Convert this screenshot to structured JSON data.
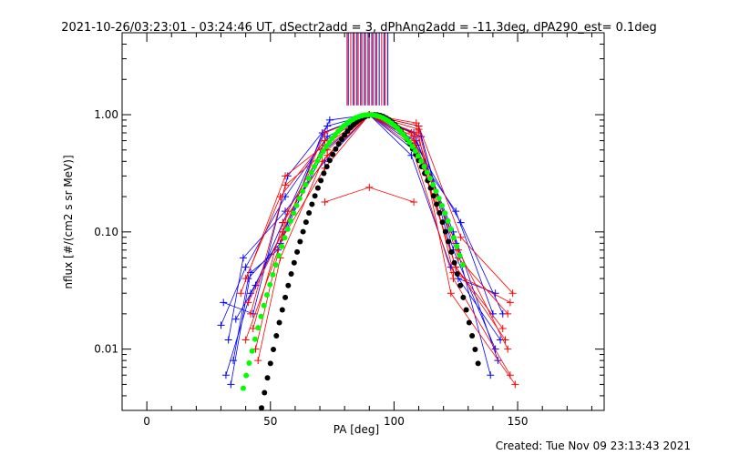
{
  "chart_data": {
    "type": "scatter",
    "title": "2021-10-26/03:23:01 - 03:24:46 UT, dSectr2add = 3, dPhAng2add = -11.3deg, dPA290_est=  0.1deg",
    "xlabel": "PA [deg]",
    "ylabel": "nflux [#/(cm2 s sr MeV)]",
    "xlim": [
      -10,
      185
    ],
    "ylim": [
      0.003,
      5.0
    ],
    "yscale": "log",
    "xticks": [
      0,
      50,
      100,
      150
    ],
    "xtick_labels": [
      "0",
      "50",
      "100",
      "150"
    ],
    "yticks": [
      0.01,
      0.1,
      1.0
    ],
    "ytick_labels": [
      "0.01",
      "0.10",
      "1.00"
    ],
    "colors": {
      "red": "#ff0000",
      "blue": "#0000ff",
      "green": "#00ff00",
      "black": "#000000"
    },
    "red_traces": [
      [
        [
          40,
          0.012
        ],
        [
          55,
          0.09
        ],
        [
          72,
          0.35
        ],
        [
          90,
          1.0
        ],
        [
          108,
          0.6
        ],
        [
          125,
          0.05
        ],
        [
          145,
          0.012
        ]
      ],
      [
        [
          42,
          0.02
        ],
        [
          56,
          0.25
        ],
        [
          73,
          0.5
        ],
        [
          90,
          1.0
        ],
        [
          109,
          0.7
        ],
        [
          126,
          0.06
        ],
        [
          146,
          0.02
        ]
      ],
      [
        [
          45,
          0.008
        ],
        [
          54,
          0.06
        ],
        [
          71,
          0.4
        ],
        [
          90,
          1.0
        ],
        [
          107,
          0.55
        ],
        [
          124,
          0.04
        ],
        [
          147,
          0.006
        ]
      ],
      [
        [
          38,
          0.03
        ],
        [
          56,
          0.3
        ],
        [
          72,
          0.55
        ],
        [
          90,
          1.0
        ],
        [
          110,
          0.8
        ],
        [
          127,
          0.09
        ],
        [
          148,
          0.03
        ]
      ],
      [
        [
          43,
          0.015
        ],
        [
          55,
          0.12
        ],
        [
          73,
          0.45
        ],
        [
          90,
          1.0
        ],
        [
          108,
          0.65
        ],
        [
          125,
          0.05
        ],
        [
          144,
          0.015
        ]
      ],
      [
        [
          40,
          0.04
        ],
        [
          54,
          0.2
        ],
        [
          72,
          0.6
        ],
        [
          90,
          1.0
        ],
        [
          109,
          0.85
        ],
        [
          123,
          0.03
        ],
        [
          149,
          0.005
        ]
      ],
      [
        [
          44,
          0.01
        ],
        [
          57,
          0.15
        ],
        [
          71,
          0.5
        ],
        [
          90,
          1.0
        ],
        [
          107,
          0.7
        ],
        [
          126,
          0.07
        ],
        [
          146,
          0.01
        ]
      ],
      [
        [
          41,
          0.025
        ],
        [
          55,
          0.1
        ],
        [
          72,
          0.7
        ],
        [
          90,
          1.0
        ],
        [
          110,
          0.75
        ],
        [
          124,
          0.045
        ],
        [
          147,
          0.025
        ]
      ],
      [
        [
          72,
          0.18
        ],
        [
          90,
          0.24
        ],
        [
          108,
          0.18
        ]
      ]
    ],
    "blue_traces": [
      [
        [
          30,
          0.016
        ],
        [
          40,
          0.05
        ],
        [
          56,
          0.2
        ],
        [
          73,
          0.65
        ],
        [
          90,
          1.0
        ],
        [
          108,
          0.5
        ],
        [
          125,
          0.15
        ],
        [
          140,
          0.02
        ]
      ],
      [
        [
          32,
          0.006
        ],
        [
          42,
          0.03
        ],
        [
          55,
          0.1
        ],
        [
          72,
          0.5
        ],
        [
          90,
          1.0
        ],
        [
          109,
          0.6
        ],
        [
          124,
          0.1
        ],
        [
          142,
          0.008
        ]
      ],
      [
        [
          35,
          0.008
        ],
        [
          41,
          0.04
        ],
        [
          54,
          0.08
        ],
        [
          71,
          0.7
        ],
        [
          90,
          1.0
        ],
        [
          110,
          0.8
        ],
        [
          126,
          0.04
        ],
        [
          141,
          0.03
        ]
      ],
      [
        [
          31,
          0.025
        ],
        [
          43,
          0.02
        ],
        [
          57,
          0.3
        ],
        [
          73,
          0.8
        ],
        [
          90,
          1.0
        ],
        [
          107,
          0.45
        ],
        [
          123,
          0.05
        ],
        [
          143,
          0.012
        ]
      ],
      [
        [
          33,
          0.012
        ],
        [
          39,
          0.06
        ],
        [
          56,
          0.15
        ],
        [
          72,
          0.4
        ],
        [
          90,
          1.0
        ],
        [
          108,
          0.7
        ],
        [
          125,
          0.08
        ],
        [
          139,
          0.006
        ]
      ],
      [
        [
          36,
          0.018
        ],
        [
          44,
          0.035
        ],
        [
          55,
          0.12
        ],
        [
          74,
          0.9
        ],
        [
          90,
          1.0
        ],
        [
          109,
          0.55
        ],
        [
          127,
          0.12
        ],
        [
          144,
          0.02
        ]
      ],
      [
        [
          34,
          0.005
        ],
        [
          42,
          0.045
        ],
        [
          53,
          0.07
        ],
        [
          72,
          0.6
        ],
        [
          90,
          1.0
        ],
        [
          111,
          0.65
        ],
        [
          124,
          0.07
        ],
        [
          141,
          0.01
        ]
      ]
    ],
    "green_model": {
      "center": 90,
      "width": 22,
      "peak": 1.0,
      "range": [
        39,
        128
      ]
    },
    "black_model": {
      "center": 92,
      "width": 19,
      "peak": 1.0,
      "range": [
        44,
        135
      ]
    },
    "vertical_markers": {
      "y_from": 1.2,
      "y_to": 5.0,
      "red_x": [
        81,
        82.5,
        84,
        85.5,
        87,
        88.5,
        90,
        91.5,
        93,
        95,
        96.5
      ],
      "blue_x": [
        81.5,
        83.5,
        85,
        86.5,
        88,
        89.5,
        91,
        92.5,
        94,
        96,
        97.5
      ]
    }
  },
  "footer": {
    "created_label": "Created: Tue Nov 09 23:13:43 2021"
  }
}
